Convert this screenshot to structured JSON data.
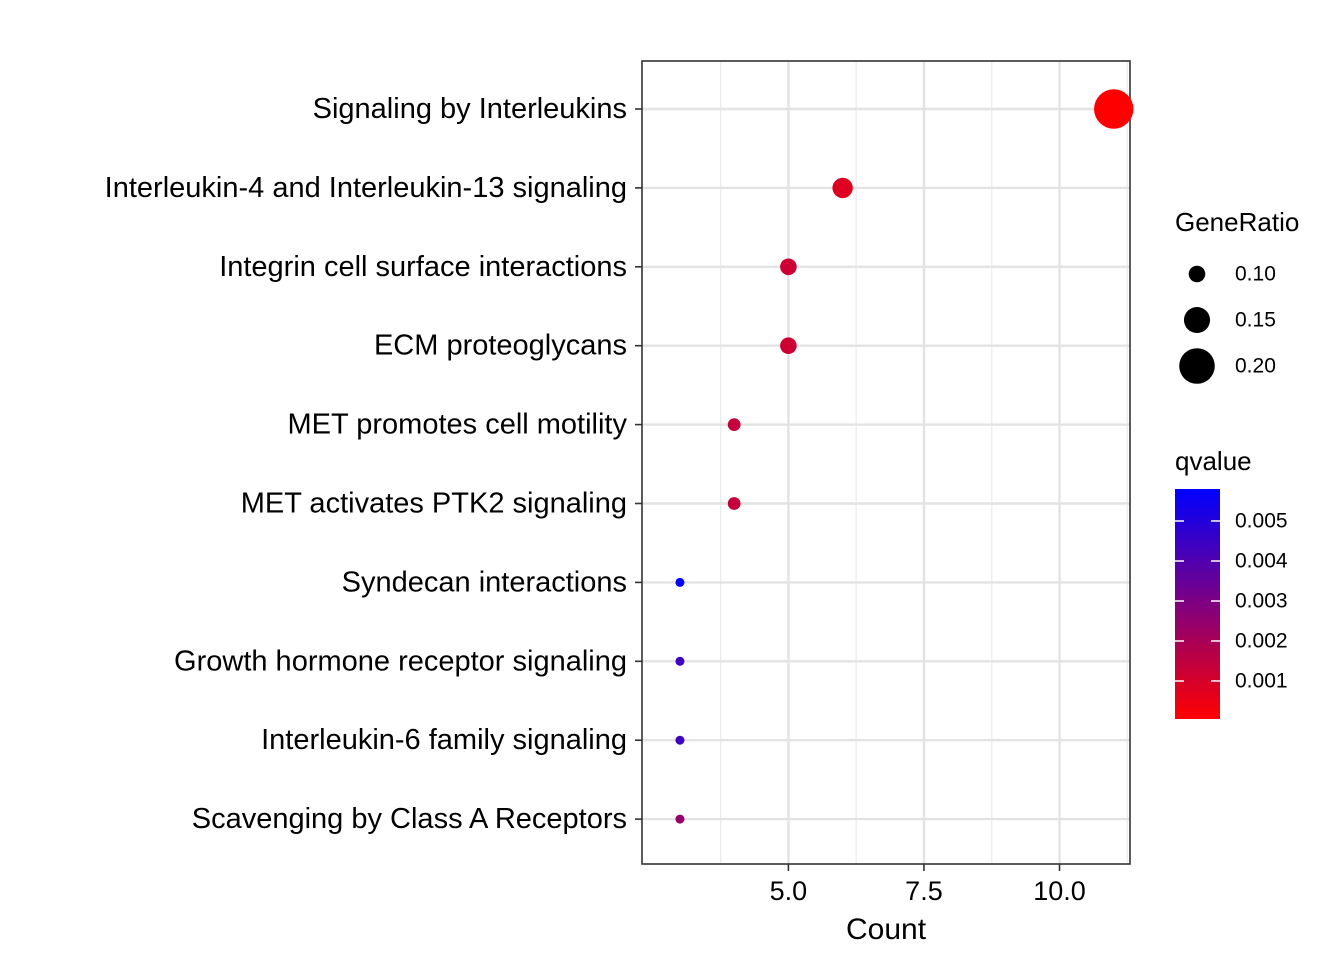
{
  "chart_data": {
    "type": "scatter",
    "xlabel": "Count",
    "ylabel": "",
    "title": "",
    "xlim": [
      2.3,
      11.3
    ],
    "x_ticks": [
      5.0,
      7.5,
      10.0
    ],
    "x_tick_labels": [
      "5.0",
      "7.5",
      "10.0"
    ],
    "grid": true,
    "legend_position": "right",
    "categories": [
      "Signaling by Interleukins",
      "Interleukin-4 and Interleukin-13 signaling",
      "Integrin cell surface interactions",
      "ECM proteoglycans",
      "MET promotes cell motility",
      "MET activates PTK2 signaling",
      "Syndecan interactions",
      "Growth hormone receptor signaling",
      "Interleukin-6 family signaling",
      "Scavenging by Class A Receptors"
    ],
    "count": [
      11,
      6,
      5,
      5,
      4,
      4,
      3,
      3,
      3,
      3
    ],
    "gene_ratio": [
      0.22,
      0.12,
      0.1,
      0.1,
      0.08,
      0.08,
      0.06,
      0.06,
      0.06,
      0.06
    ],
    "qvalue": [
      5e-05,
      0.0008,
      0.0012,
      0.0012,
      0.0014,
      0.0014,
      0.0057,
      0.0044,
      0.0044,
      0.0024
    ],
    "size_legend": {
      "title": "GeneRatio",
      "values": [
        0.1,
        0.15,
        0.2
      ],
      "labels": [
        "0.10",
        "0.15",
        "0.20"
      ]
    },
    "color_legend": {
      "title": "qvalue",
      "low_color": "#ff0000",
      "high_color": "#0000ff",
      "range": [
        5e-05,
        0.0058
      ],
      "ticks": [
        0.005,
        0.004,
        0.003,
        0.002,
        0.001
      ],
      "labels": [
        "0.005",
        "0.004",
        "0.003",
        "0.002",
        "0.001"
      ]
    }
  }
}
